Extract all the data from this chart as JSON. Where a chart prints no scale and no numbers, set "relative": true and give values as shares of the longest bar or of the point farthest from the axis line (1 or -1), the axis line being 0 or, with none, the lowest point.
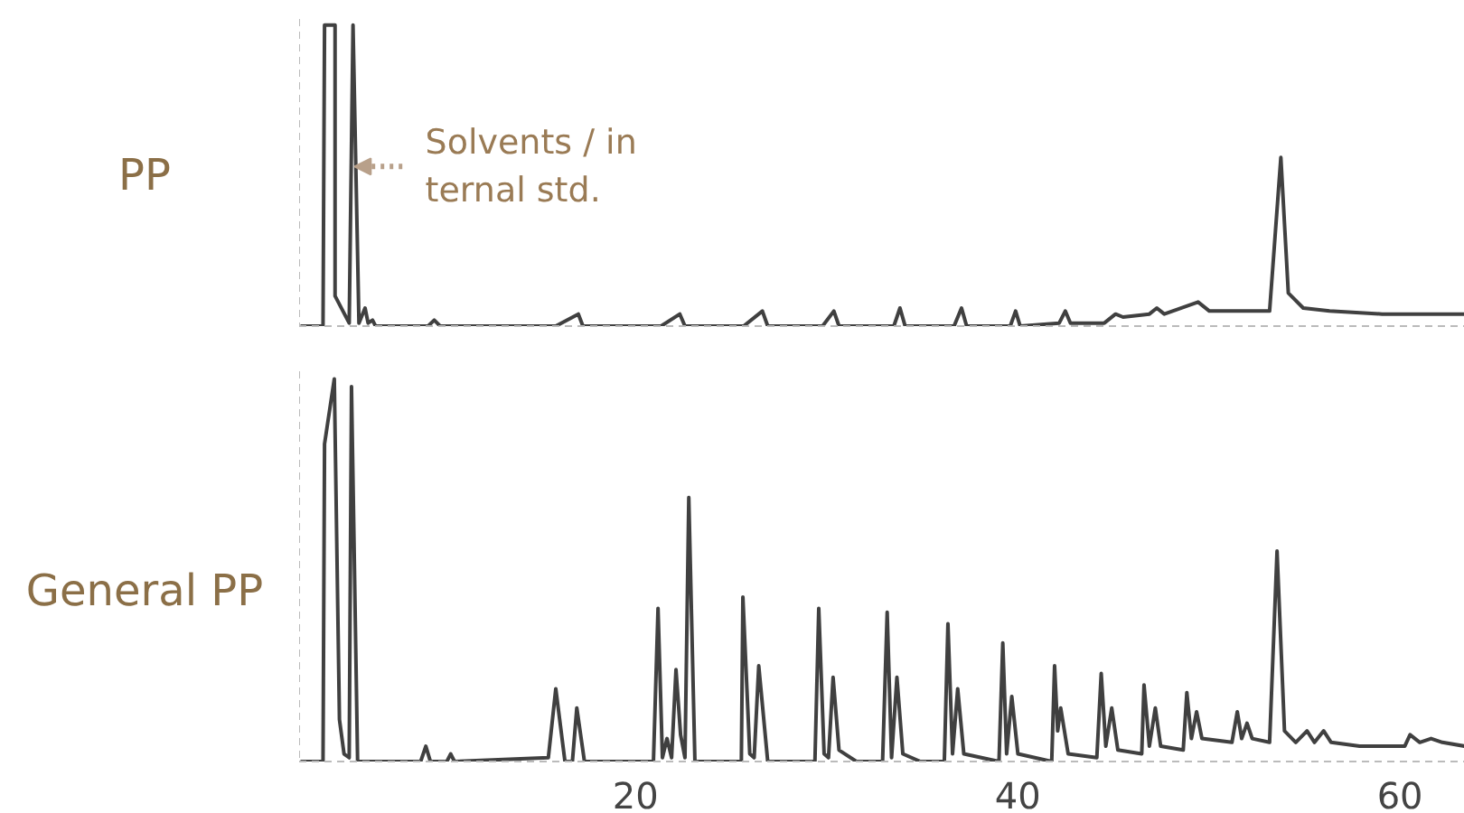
{
  "chart_data": [
    {
      "type": "line",
      "relative": true,
      "tick_labels": false,
      "xlim": [
        2.4,
        63.4
      ],
      "annotations": [
        {
          "text": "Solvents / in\nternal std.",
          "x": 5.0,
          "y": 0.53
        }
      ],
      "series": [
        {
          "name": "PP",
          "color": "#404040",
          "x": [
            2.47,
            3.65,
            3.73,
            4.28,
            4.28,
            5.02,
            5.22,
            5.53,
            5.85,
            6.01,
            6.24,
            6.4,
            9.15,
            9.47,
            9.78,
            15.83,
            17.01,
            17.25,
            21.34,
            22.32,
            22.59,
            25.66,
            26.64,
            26.92,
            29.79,
            30.38,
            30.65,
            33.52,
            33.84,
            34.11,
            36.67,
            37.06,
            37.33,
            39.61,
            39.89,
            40.13,
            42.17,
            42.49,
            42.76,
            44.53,
            45.12,
            45.51,
            46.89,
            47.28,
            47.67,
            49.44,
            50.03,
            53.18,
            53.77,
            54.16,
            54.94,
            56.32,
            59.07,
            63.4
          ],
          "values": [
            0,
            0,
            1,
            1,
            0.1,
            0.01,
            1,
            0.01,
            0.06,
            0.01,
            0.02,
            0,
            0,
            0.02,
            0,
            0,
            0.04,
            0,
            0,
            0.04,
            0,
            0,
            0.05,
            0,
            0,
            0.05,
            0,
            0,
            0.06,
            0,
            0,
            0.06,
            0,
            0,
            0.05,
            0,
            0.01,
            0.05,
            0.01,
            0.01,
            0.04,
            0.03,
            0.04,
            0.06,
            0.04,
            0.08,
            0.05,
            0.05,
            0.56,
            0.11,
            0.06,
            0.05,
            0.04,
            0.04
          ]
        }
      ]
    },
    {
      "type": "line",
      "relative": true,
      "tick_labels": "x",
      "xlim": [
        2.4,
        63.4
      ],
      "xticks": [
        20,
        40,
        60
      ],
      "series": [
        {
          "name": "General PP",
          "color": "#404040",
          "x": [
            2.47,
            3.65,
            3.73,
            4.24,
            4.51,
            4.75,
            5.02,
            5.14,
            5.46,
            8.76,
            9.03,
            9.27,
            10.13,
            10.33,
            10.53,
            15.44,
            15.83,
            16.31,
            16.7,
            16.93,
            17.33,
            20.94,
            21.18,
            21.41,
            21.65,
            21.89,
            22.12,
            22.36,
            22.59,
            22.79,
            23.11,
            25.54,
            25.62,
            25.98,
            26.21,
            26.45,
            26.92,
            27.63,
            29.39,
            29.59,
            29.87,
            30.1,
            30.34,
            30.65,
            31.56,
            32.93,
            33.17,
            33.4,
            33.68,
            33.99,
            34.9,
            36.16,
            36.35,
            36.59,
            36.86,
            37.18,
            39.02,
            39.22,
            39.42,
            39.69,
            40.01,
            41.78,
            41.93,
            42.09,
            42.25,
            42.64,
            44.14,
            44.37,
            44.61,
            44.92,
            45.24,
            46.49,
            46.61,
            46.89,
            47.2,
            47.48,
            48.66,
            48.85,
            49.09,
            49.36,
            49.64,
            51.21,
            51.49,
            51.72,
            52.0,
            52.27,
            53.18,
            53.57,
            53.96,
            54.55,
            55.14,
            55.53,
            56.01,
            56.4,
            57.89,
            60.25,
            60.53,
            61.04,
            61.63,
            62.22,
            63.4
          ],
          "values": [
            0,
            0,
            0.83,
            1,
            0.11,
            0.02,
            0.01,
            0.98,
            0,
            0,
            0.04,
            0,
            0,
            0.02,
            0,
            0.01,
            0.19,
            0,
            0,
            0.14,
            0,
            0,
            0.4,
            0.01,
            0.06,
            0.01,
            0.24,
            0.07,
            0.01,
            0.69,
            0,
            0,
            0.43,
            0.02,
            0.01,
            0.25,
            0,
            0,
            0,
            0.4,
            0.02,
            0.01,
            0.22,
            0.03,
            0,
            0,
            0.39,
            0.01,
            0.22,
            0.02,
            0,
            0,
            0.36,
            0.02,
            0.19,
            0.02,
            0,
            0.31,
            0.02,
            0.17,
            0.02,
            0,
            0.25,
            0.08,
            0.14,
            0.02,
            0.01,
            0.23,
            0.04,
            0.14,
            0.03,
            0.02,
            0.2,
            0.04,
            0.14,
            0.04,
            0.03,
            0.18,
            0.06,
            0.13,
            0.06,
            0.05,
            0.13,
            0.06,
            0.1,
            0.06,
            0.05,
            0.55,
            0.08,
            0.05,
            0.08,
            0.05,
            0.08,
            0.05,
            0.04,
            0.04,
            0.07,
            0.05,
            0.06,
            0.05,
            0.04
          ]
        }
      ]
    }
  ]
}
